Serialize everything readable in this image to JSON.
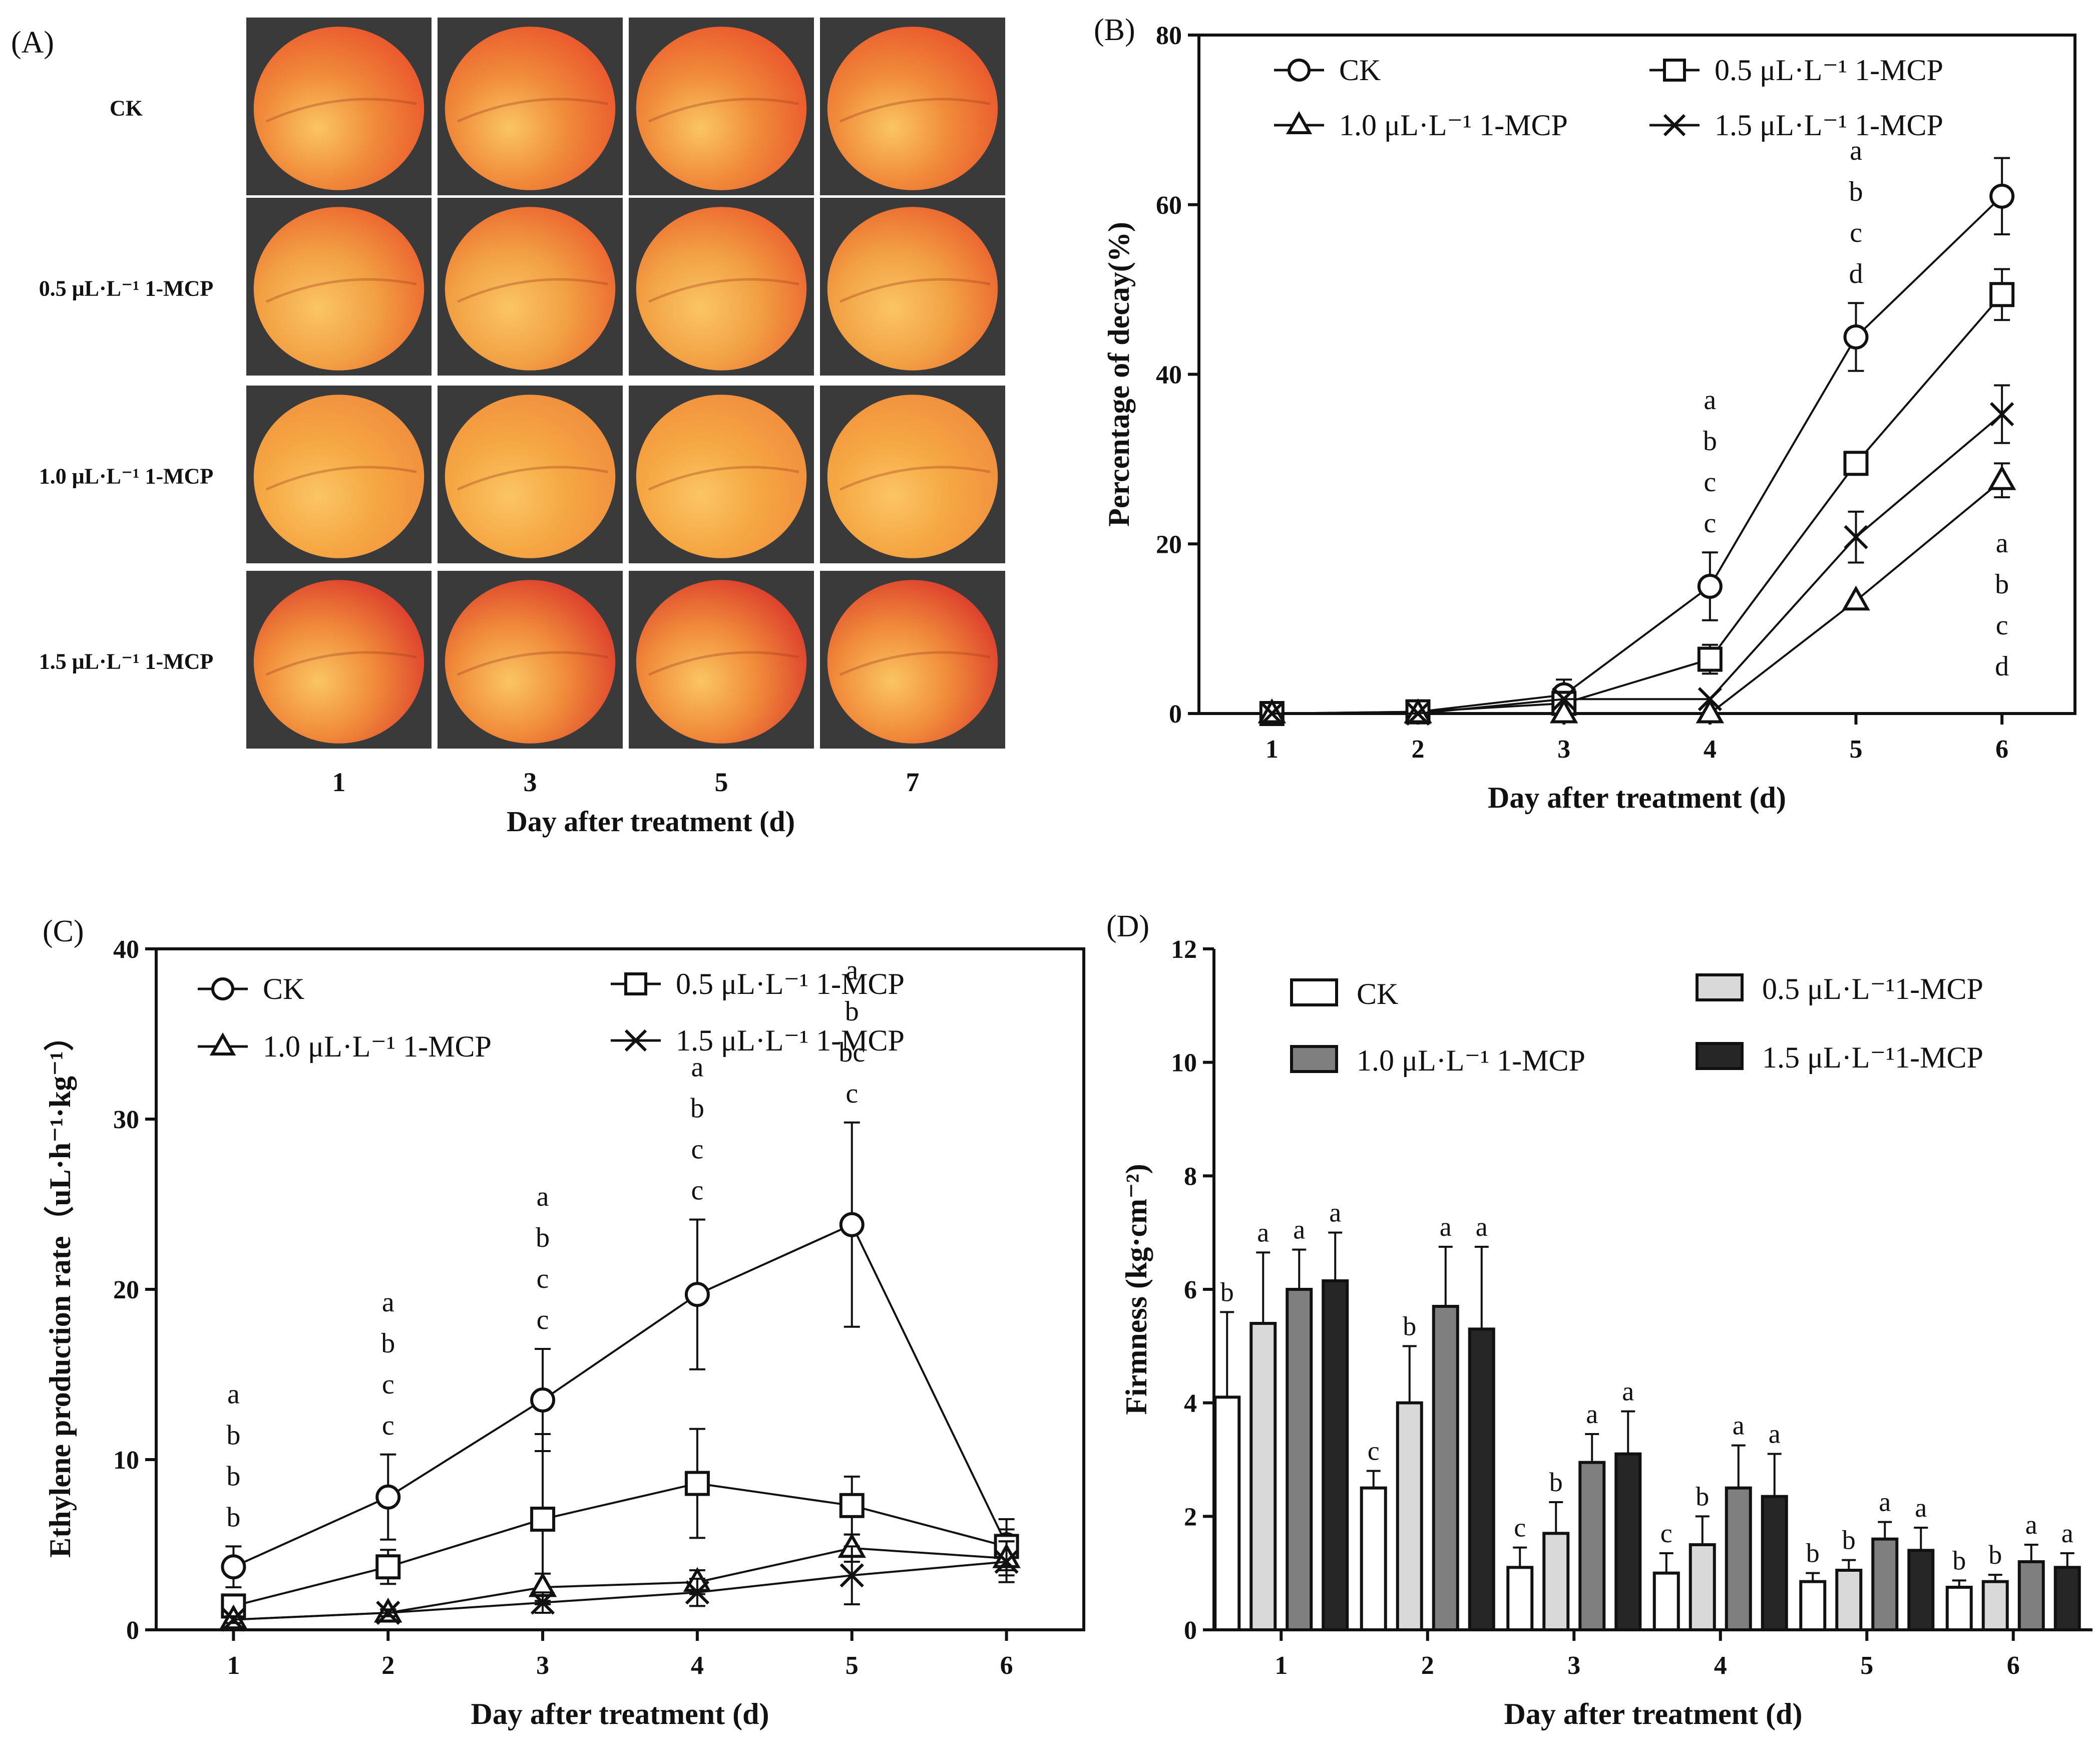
{
  "panels": {
    "A": {
      "label": "(A)",
      "rows": [
        "CK",
        "0.5 μL·L⁻¹ 1-MCP",
        "1.0 μL·L⁻¹ 1-MCP",
        "1.5 μL·L⁻¹ 1-MCP"
      ],
      "columns": [
        "1",
        "3",
        "5",
        "7"
      ],
      "xlabel": "Day after treatment (d)",
      "colors": {
        "background": "#3a3a3a",
        "CK": [
          "#f08a3a",
          "#e94d2a"
        ],
        "0.5 μL·L⁻¹ 1-MCP": [
          "#f2a143",
          "#ea5a2c"
        ],
        "1.0 μL·L⁻¹ 1-MCP": [
          "#f5a743",
          "#f08a3c"
        ],
        "1.5 μL·L⁻¹ 1-MCP": [
          "#f08a3a",
          "#d9302a"
        ]
      }
    }
  },
  "chart_data": [
    {
      "id": "B",
      "panel_label": "(B)",
      "type": "line",
      "title": "",
      "xlabel": "Day after treatment (d)",
      "ylabel": "Percentage of decay(%)",
      "x": [
        1,
        2,
        3,
        4,
        5,
        6
      ],
      "xlim": [
        0.5,
        6.5
      ],
      "ylim": [
        0,
        80
      ],
      "yticks": [
        0,
        20,
        40,
        60,
        80
      ],
      "grid": false,
      "legend_position": "top",
      "series": [
        {
          "name": "CK",
          "marker": "circle",
          "values": [
            0,
            0.2,
            2.2,
            15,
            44.4,
            61
          ],
          "errors": [
            0.3,
            0.3,
            1.8,
            4,
            4,
            4.5
          ]
        },
        {
          "name": "0.5 μL·L⁻¹ 1-MCP",
          "marker": "square",
          "values": [
            0,
            0.2,
            1.2,
            6.4,
            29.5,
            49.4
          ],
          "errors": [
            0.3,
            0.3,
            1,
            1.7,
            0,
            3
          ]
        },
        {
          "name": "1.0 μL·L⁻¹ 1-MCP",
          "marker": "triangle",
          "values": [
            0,
            0,
            0,
            0,
            13.3,
            27.5
          ],
          "errors": [
            0,
            0,
            0,
            0,
            0,
            2
          ]
        },
        {
          "name": "1.5 μL·L⁻¹ 1-MCP",
          "marker": "x",
          "values": [
            0,
            0,
            1.7,
            1.7,
            20.8,
            35.3
          ],
          "errors": [
            0,
            0,
            0,
            0,
            3,
            3.4
          ]
        }
      ],
      "annotations": [
        {
          "x": 4,
          "letters": [
            "a",
            "b",
            "c",
            "c"
          ]
        },
        {
          "x": 5,
          "letters": [
            "a",
            "b",
            "c",
            "d"
          ]
        },
        {
          "x": 6,
          "letters": [
            "a",
            "b",
            "c",
            "d"
          ],
          "position": "below"
        }
      ]
    },
    {
      "id": "C",
      "panel_label": "(C)",
      "type": "line",
      "title": "",
      "xlabel": "Day after treatment (d)",
      "ylabel": "Ethylene production rate（uL·h⁻¹·kg⁻¹）",
      "x": [
        1,
        2,
        3,
        4,
        5,
        6
      ],
      "xlim": [
        0.5,
        6.5
      ],
      "ylim": [
        0,
        40
      ],
      "yticks": [
        0,
        10,
        20,
        30,
        40
      ],
      "grid": false,
      "legend_position": "top",
      "series": [
        {
          "name": "CK",
          "marker": "circle",
          "values": [
            3.7,
            7.8,
            13.5,
            19.7,
            23.8,
            5.0
          ],
          "errors": [
            1.2,
            2.5,
            3.0,
            4.4,
            6.0,
            1.5
          ]
        },
        {
          "name": "0.5 μL·L⁻¹ 1-MCP",
          "marker": "square",
          "values": [
            1.4,
            3.7,
            6.5,
            8.6,
            7.3,
            4.9
          ],
          "errors": [
            0.6,
            1.0,
            5.0,
            3.2,
            1.7,
            1.0
          ]
        },
        {
          "name": "1.0 μL·L⁻¹ 1-MCP",
          "marker": "triangle",
          "values": [
            0.6,
            1.0,
            2.5,
            2.8,
            4.8,
            4.2
          ],
          "errors": [
            0.2,
            0.2,
            0.8,
            0.7,
            0.8,
            1.0
          ]
        },
        {
          "name": "1.5 μL·L⁻¹ 1-MCP",
          "marker": "x",
          "values": [
            0.6,
            1.0,
            1.6,
            2.2,
            3.2,
            4.0
          ],
          "errors": [
            0.2,
            0.2,
            0.6,
            0.8,
            1.7,
            1.2
          ]
        }
      ],
      "annotations": [
        {
          "x": 1,
          "letters": [
            "a",
            "b",
            "b",
            "b"
          ]
        },
        {
          "x": 2,
          "letters": [
            "a",
            "b",
            "c",
            "c"
          ]
        },
        {
          "x": 3,
          "letters": [
            "a",
            "b",
            "c",
            "c"
          ]
        },
        {
          "x": 4,
          "letters": [
            "a",
            "b",
            "c",
            "c"
          ]
        },
        {
          "x": 5,
          "letters": [
            "a",
            "b",
            "bc",
            "c"
          ]
        }
      ]
    },
    {
      "id": "D",
      "panel_label": "(D)",
      "type": "bar",
      "title": "",
      "xlabel": "Day after treatment (d)",
      "ylabel": "Firmness (kg·cm⁻²)",
      "categories": [
        "1",
        "2",
        "3",
        "4",
        "5",
        "6"
      ],
      "ylim": [
        0,
        12
      ],
      "yticks": [
        0,
        2,
        4,
        6,
        8,
        10,
        12
      ],
      "grid": false,
      "legend_position": "top",
      "series": [
        {
          "name": "CK",
          "color": "#ffffff",
          "values": [
            4.1,
            2.5,
            1.1,
            1.0,
            0.85,
            0.75
          ],
          "errors": [
            1.5,
            0.3,
            0.35,
            0.35,
            0.15,
            0.12
          ],
          "letters": [
            "b",
            "c",
            "c",
            "c",
            "b",
            "b"
          ]
        },
        {
          "name": "0.5 μL·L⁻¹1-MCP",
          "color": "#d9d9d9",
          "values": [
            5.4,
            4.0,
            1.7,
            1.5,
            1.05,
            0.85
          ],
          "errors": [
            1.25,
            1.0,
            0.55,
            0.5,
            0.18,
            0.12
          ],
          "letters": [
            "a",
            "b",
            "b",
            "b",
            "b",
            "b"
          ]
        },
        {
          "name": "1.0 μL·L⁻¹ 1-MCP",
          "color": "#7f7f7f",
          "values": [
            6.0,
            5.7,
            2.95,
            2.5,
            1.6,
            1.2
          ],
          "errors": [
            0.7,
            1.05,
            0.5,
            0.75,
            0.3,
            0.3
          ],
          "letters": [
            "a",
            "a",
            "a",
            "a",
            "a",
            "a"
          ]
        },
        {
          "name": "1.5 μL·L⁻¹1-MCP",
          "color": "#262626",
          "values": [
            6.15,
            5.3,
            3.1,
            2.35,
            1.4,
            1.1
          ],
          "errors": [
            0.85,
            1.45,
            0.75,
            0.75,
            0.4,
            0.25
          ],
          "letters": [
            "a",
            "a",
            "a",
            "a",
            "a",
            "a"
          ]
        }
      ]
    }
  ]
}
